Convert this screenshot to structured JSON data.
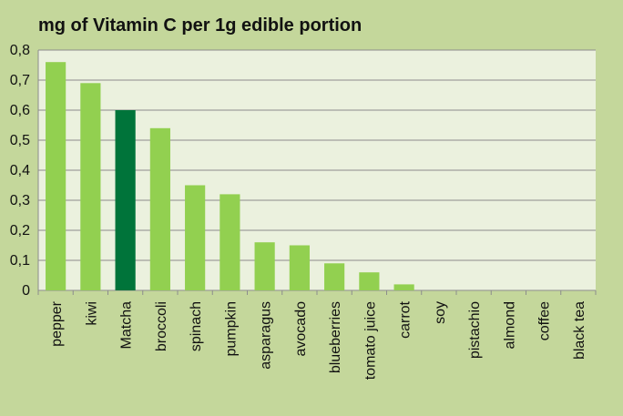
{
  "chart_data": {
    "type": "bar",
    "title": "mg of Vitamin C per 1g edible portion",
    "xlabel": "",
    "ylabel": "",
    "ylim": [
      0,
      0.8
    ],
    "yticks": [
      "0",
      "0,1",
      "0,2",
      "0,3",
      "0,4",
      "0,5",
      "0,6",
      "0,7",
      "0,8"
    ],
    "grid": true,
    "legend": "none",
    "categories": [
      "pepper",
      "kiwi",
      "Matcha",
      "broccoli",
      "spinach",
      "pumpkin",
      "asparagus",
      "avocado",
      "blueberries",
      "tomato juice",
      "carrot",
      "soy",
      "pistachio",
      "almond",
      "coffee",
      "black tea"
    ],
    "values": [
      0.76,
      0.69,
      0.6,
      0.54,
      0.35,
      0.32,
      0.16,
      0.15,
      0.09,
      0.06,
      0.02,
      0,
      0,
      0,
      0,
      0
    ],
    "highlight_category": "Matcha",
    "colors": {
      "bar": "#92d050",
      "highlight": "#00743a",
      "plot_background": "#ebf1de",
      "page_background": "#c4d79b",
      "grid": "#8c8c8c"
    }
  }
}
